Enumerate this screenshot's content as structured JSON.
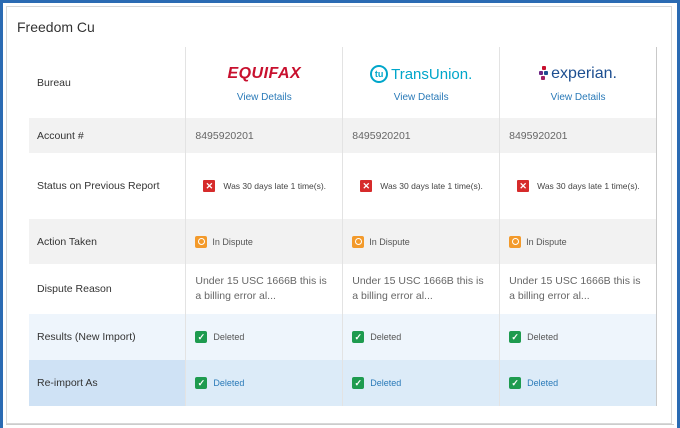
{
  "card": {
    "title": "Freedom Cu"
  },
  "labels": {
    "bureau": "Bureau",
    "account": "Account #",
    "status": "Status on Previous Report",
    "action": "Action Taken",
    "reason": "Dispute Reason",
    "results": "Results (New Import)",
    "reimport": "Re-import As"
  },
  "bureaus": [
    {
      "logo_text": "EQUIFAX",
      "view_details": "View Details",
      "account": "8495920201",
      "status": "Was 30 days late 1 time(s).",
      "action": "In Dispute",
      "reason": "Under 15 USC 1666B this is a billing error al...",
      "results": "Deleted",
      "reimport": "Deleted"
    },
    {
      "logo_mark": "tu",
      "logo_text": "TransUnion.",
      "view_details": "View Details",
      "account": "8495920201",
      "status": "Was 30 days late 1 time(s).",
      "action": "In Dispute",
      "reason": "Under 15 USC 1666B this is a billing error al...",
      "results": "Deleted",
      "reimport": "Deleted"
    },
    {
      "logo_text": "experian.",
      "view_details": "View Details",
      "account": "8495920201",
      "status": "Was 30 days late 1 time(s).",
      "action": "In Dispute",
      "reason": "Under 15 USC 1666B this is a billing error al...",
      "results": "Deleted",
      "reimport": "Deleted"
    }
  ],
  "colors": {
    "frame": "#2b6bb3",
    "equifax": "#c8102e",
    "transunion": "#00a6ca",
    "experian": "#1d4f91",
    "link": "#2a7ab8",
    "status_x": "#d62b2b",
    "dispute": "#f39a2b",
    "deleted": "#1e9b4f"
  },
  "icons": {
    "status": "x-icon",
    "dispute": "dispute-icon",
    "deleted": "check-icon"
  }
}
